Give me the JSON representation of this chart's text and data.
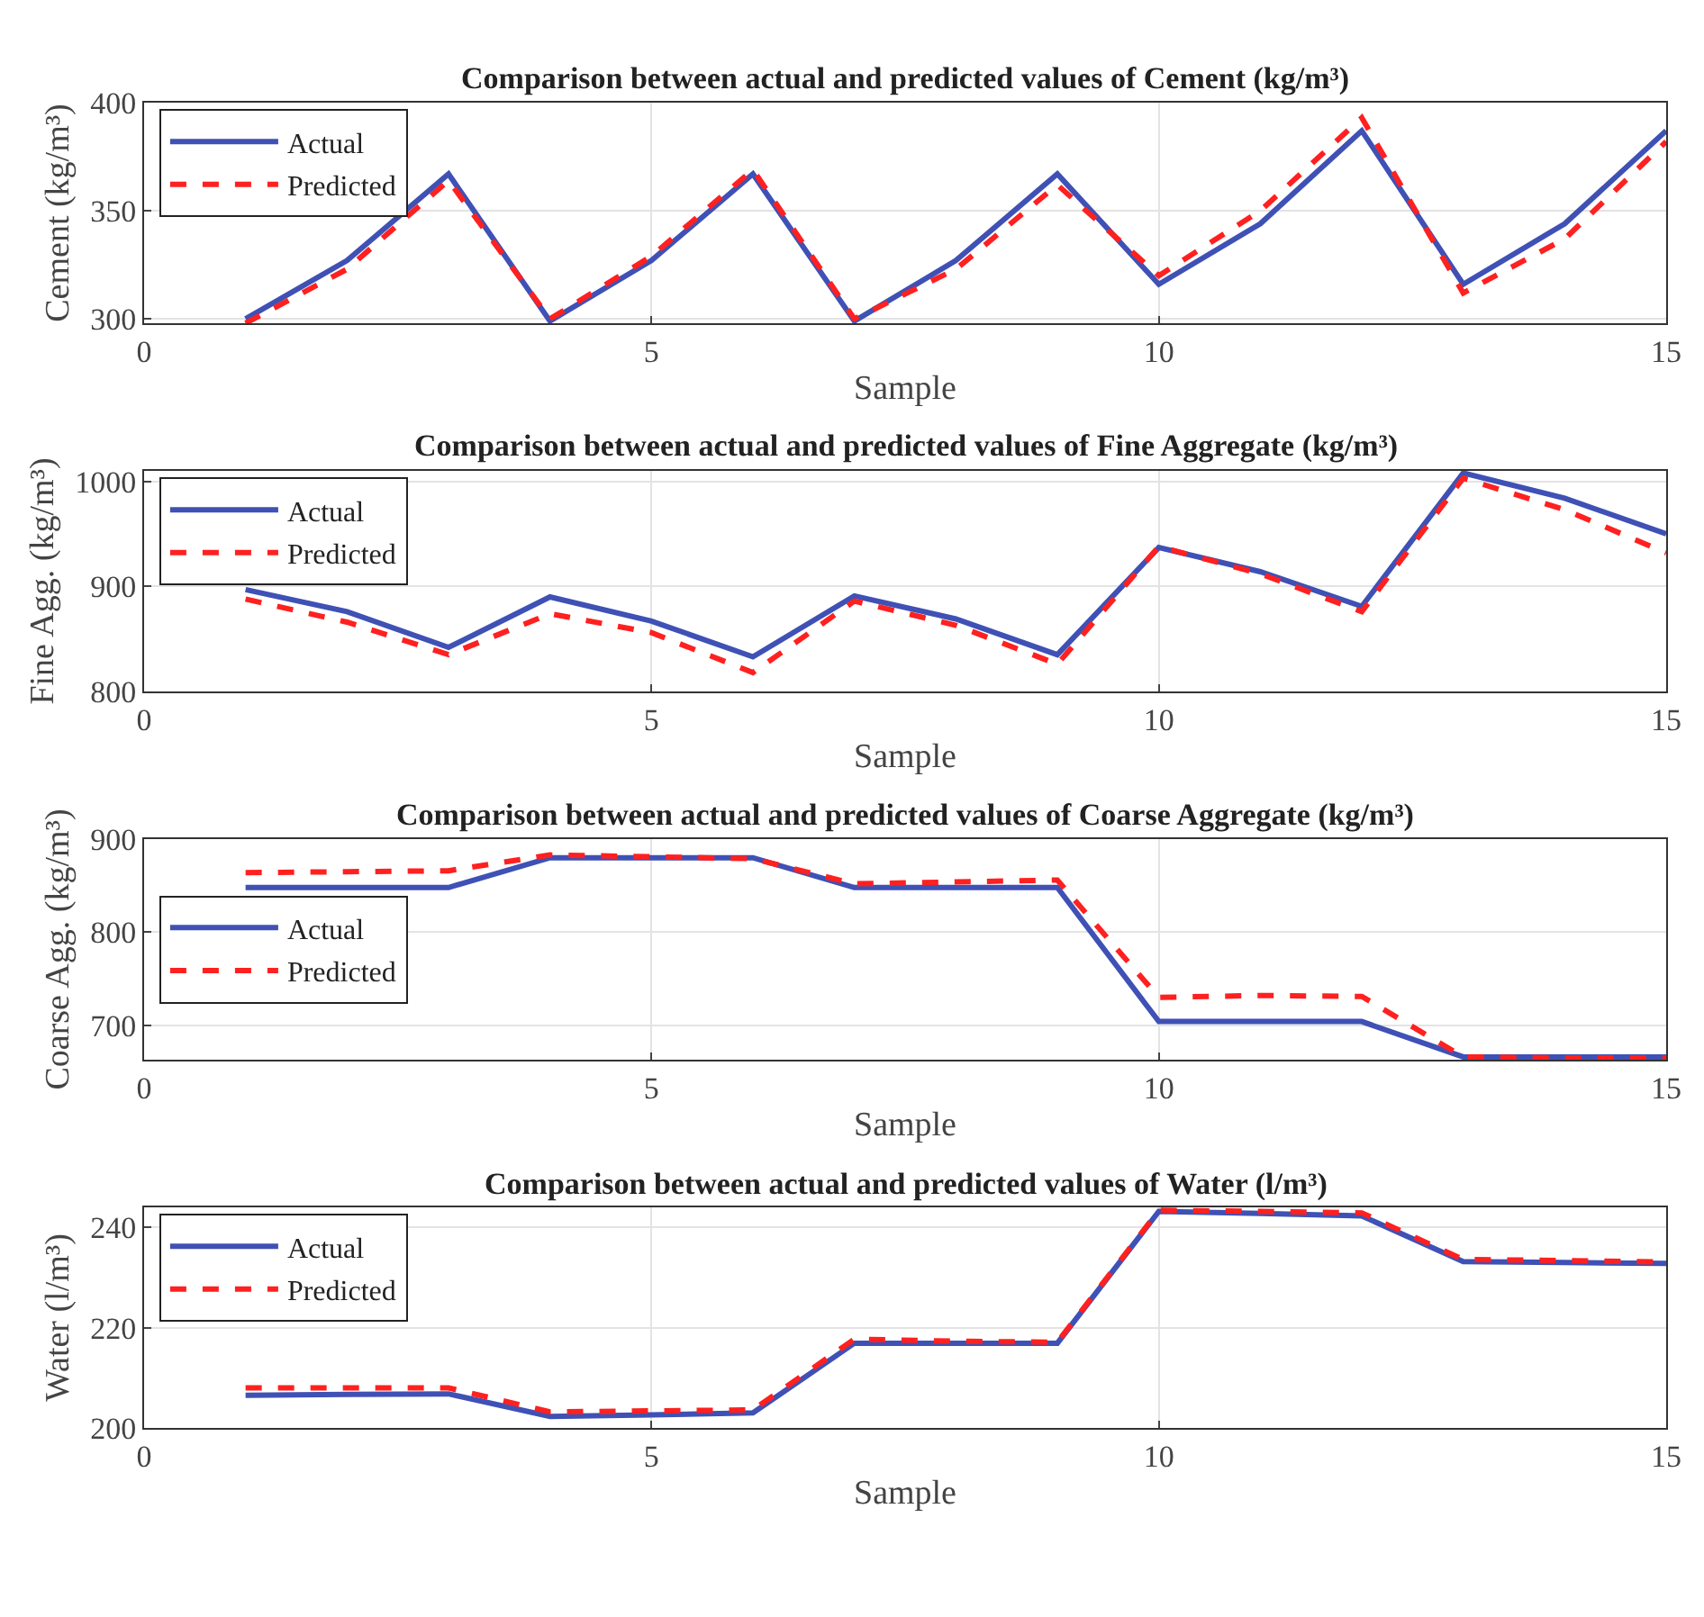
{
  "chart_data": [
    {
      "type": "line",
      "title": "Comparison between actual and predicted values of Cement (kg/m³)",
      "xlabel": "Sample",
      "ylabel": "Cement (kg/m³)",
      "x": [
        1,
        2,
        3,
        4,
        5,
        6,
        7,
        8,
        9,
        10,
        11,
        12,
        13,
        14,
        15
      ],
      "series": [
        {
          "name": "Actual",
          "color": "#3f51b5",
          "line_style": "solid",
          "values": [
            300,
            327,
            367,
            299,
            327,
            367,
            299,
            327,
            367,
            316,
            344,
            387,
            316,
            344,
            387
          ]
        },
        {
          "name": "Predicted",
          "color": "#ff2020",
          "line_style": "dashed",
          "values": [
            298,
            323,
            364,
            300,
            329,
            369,
            300,
            323,
            362,
            320,
            350,
            393,
            312,
            337,
            382
          ]
        }
      ],
      "xlim": [
        0,
        15
      ],
      "xticks": [
        0,
        5,
        10,
        15
      ],
      "ylim": [
        298,
        400
      ],
      "yticks": [
        300,
        350,
        400
      ],
      "grid": true,
      "legend": "top left"
    },
    {
      "type": "line",
      "title": "Comparison between actual and predicted values of Fine Aggregate (kg/m³)",
      "xlabel": "Sample",
      "ylabel": "Fine Agg. (kg/m³)",
      "x": [
        1,
        2,
        3,
        4,
        5,
        6,
        7,
        8,
        9,
        10,
        11,
        12,
        13,
        14,
        15
      ],
      "series": [
        {
          "name": "Actual",
          "color": "#3f51b5",
          "line_style": "solid",
          "values": [
            897,
            876,
            842,
            890,
            867,
            833,
            891,
            869,
            835,
            937,
            914,
            881,
            1008,
            984,
            950
          ]
        },
        {
          "name": "Predicted",
          "color": "#ff2020",
          "line_style": "dashed",
          "values": [
            888,
            866,
            835,
            874,
            856,
            818,
            886,
            863,
            826,
            938,
            912,
            876,
            1003,
            973,
            932
          ]
        }
      ],
      "xlim": [
        0,
        15
      ],
      "xticks": [
        0,
        5,
        10,
        15
      ],
      "ylim": [
        800,
        1010
      ],
      "yticks": [
        800,
        900,
        1000
      ],
      "grid": true,
      "legend": "top left"
    },
    {
      "type": "line",
      "title": "Comparison between actual and predicted values of Coarse Aggregate (kg/m³)",
      "xlabel": "Sample",
      "ylabel": "Coarse Agg. (kg/m³)",
      "x": [
        1,
        2,
        3,
        4,
        5,
        6,
        7,
        8,
        9,
        10,
        11,
        12,
        13,
        14,
        15
      ],
      "series": [
        {
          "name": "Actual",
          "color": "#3f51b5",
          "line_style": "solid",
          "values": [
            848,
            848,
            848,
            880,
            880,
            880,
            848,
            848,
            848,
            704,
            704,
            704,
            666,
            666,
            666
          ]
        },
        {
          "name": "Predicted",
          "color": "#ff2020",
          "line_style": "dashed",
          "values": [
            864,
            865,
            866,
            883,
            881,
            879,
            852,
            854,
            856,
            730,
            732,
            731,
            666,
            665,
            665
          ]
        }
      ],
      "xlim": [
        0,
        15
      ],
      "xticks": [
        0,
        5,
        10,
        15
      ],
      "ylim": [
        663,
        900
      ],
      "yticks": [
        700,
        800,
        900
      ],
      "grid": true,
      "legend": "left"
    },
    {
      "type": "line",
      "title": "Comparison between actual and predicted values of Water (l/m³)",
      "xlabel": "Sample",
      "ylabel": "Water (l/m³)",
      "x": [
        1,
        2,
        3,
        4,
        5,
        6,
        7,
        8,
        9,
        10,
        11,
        12,
        13,
        14,
        15
      ],
      "series": [
        {
          "name": "Actual",
          "color": "#3f51b5",
          "line_style": "solid",
          "values": [
            206.5,
            206.7,
            206.8,
            202.3,
            202.6,
            203.0,
            216.9,
            216.9,
            216.9,
            243.2,
            242.8,
            242.3,
            233.2,
            233.0,
            232.8
          ]
        },
        {
          "name": "Predicted",
          "color": "#ff2020",
          "line_style": "dashed",
          "values": [
            208,
            208,
            208,
            203.2,
            203.4,
            203.6,
            217.7,
            217.3,
            217.1,
            243.4,
            243.2,
            242.9,
            233.6,
            233.4,
            233.1
          ]
        }
      ],
      "xlim": [
        0,
        15
      ],
      "xticks": [
        0,
        5,
        10,
        15
      ],
      "ylim": [
        200,
        244
      ],
      "yticks": [
        200,
        220,
        240
      ],
      "grid": true,
      "legend": "top left"
    }
  ]
}
